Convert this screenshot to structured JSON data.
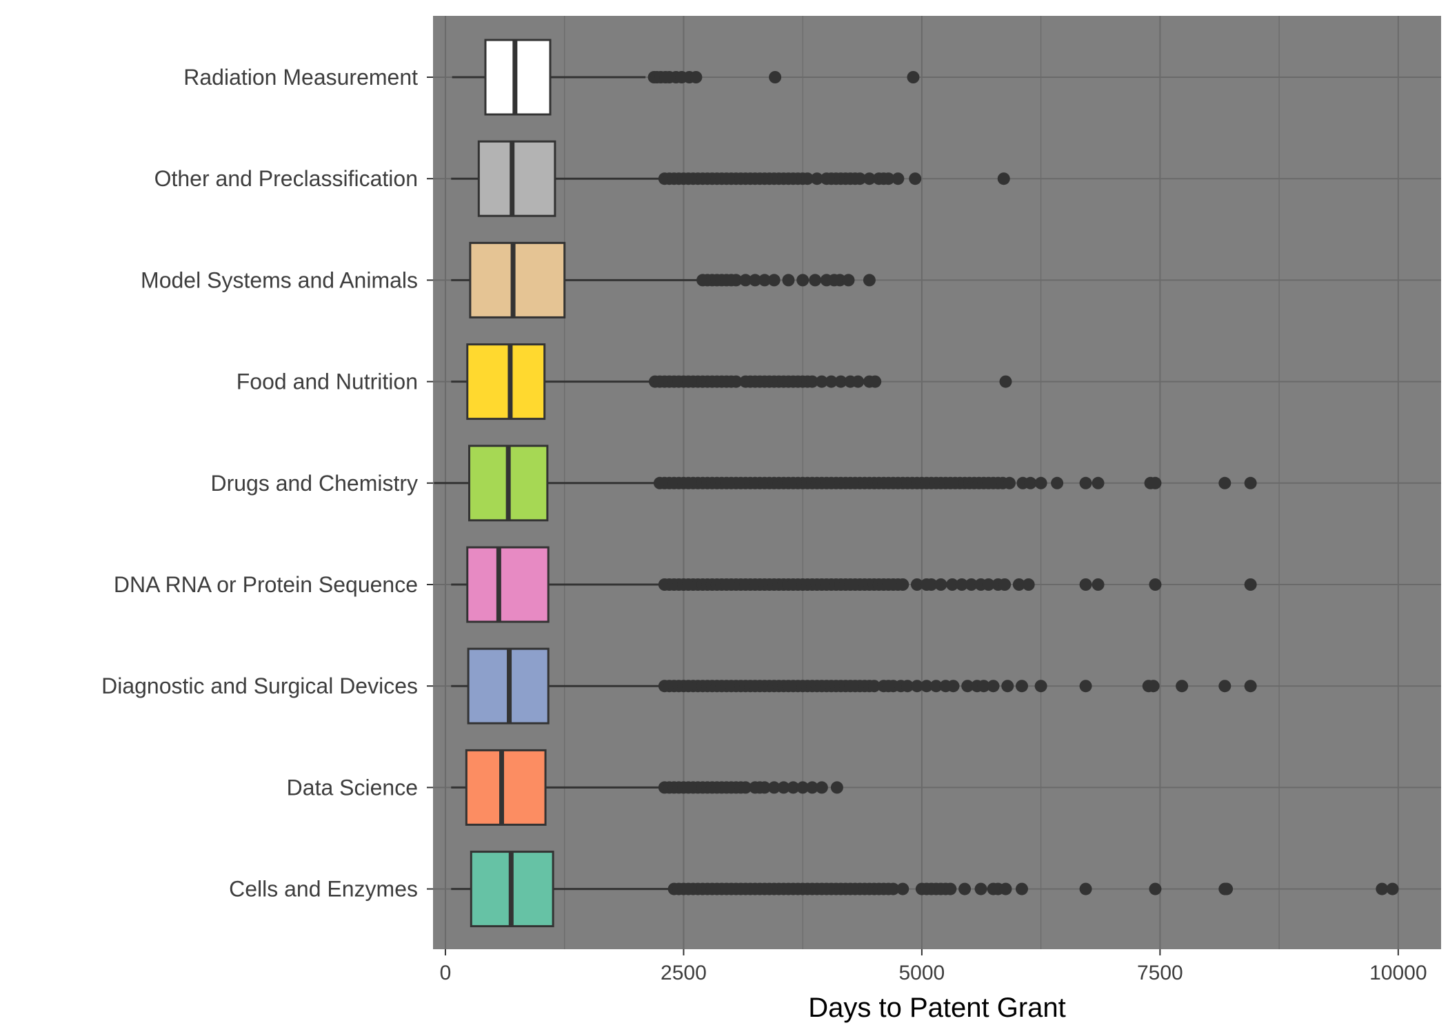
{
  "chart_data": {
    "type": "boxplot",
    "orientation": "horizontal",
    "xlabel": "Days to Patent Grant",
    "ylabel": "",
    "xlim": [
      -130,
      10450
    ],
    "xticks": [
      0,
      2500,
      5000,
      7500,
      10000
    ],
    "xtick_labels": [
      "0",
      "2500",
      "5000",
      "7500",
      "10000"
    ],
    "grid": true,
    "legend": "none",
    "panel_color": "#7f7f7f",
    "grid_color": "#6a6a6a",
    "box_edge_color": "#333333",
    "outlier_color": "#333333",
    "categories": [
      "Cells and Enzymes",
      "Data Science",
      "Diagnostic and Surgical Devices",
      "DNA RNA or Protein Sequence",
      "Drugs and Chemistry",
      "Food and Nutrition",
      "Model Systems and Animals",
      "Other and Preclassification",
      "Radiation Measurement"
    ],
    "series": [
      {
        "category": "Cells and Enzymes",
        "color": "#66c2a5",
        "whisker_low": 60,
        "q1": 270,
        "median": 690,
        "q3": 1130,
        "whisker_high": 2400,
        "outliers": [
          2400,
          2450,
          2500,
          2550,
          2600,
          2650,
          2700,
          2750,
          2800,
          2850,
          2900,
          2950,
          3000,
          3050,
          3100,
          3150,
          3200,
          3250,
          3300,
          3350,
          3400,
          3450,
          3500,
          3550,
          3600,
          3650,
          3700,
          3750,
          3800,
          3850,
          3900,
          3950,
          4000,
          4050,
          4100,
          4150,
          4200,
          4250,
          4300,
          4350,
          4400,
          4450,
          4500,
          4550,
          4600,
          4650,
          4700,
          4800,
          5000,
          5050,
          5100,
          5150,
          5200,
          5250,
          5300,
          5450,
          5620,
          5750,
          5800,
          5880,
          6050,
          6720,
          7450,
          8180,
          8200,
          9830,
          9940
        ]
      },
      {
        "category": "Data Science",
        "color": "#fc8d62",
        "whisker_low": 60,
        "q1": 220,
        "median": 590,
        "q3": 1050,
        "whisker_high": 2300,
        "outliers": [
          2300,
          2350,
          2400,
          2450,
          2500,
          2550,
          2600,
          2650,
          2700,
          2750,
          2800,
          2850,
          2900,
          2950,
          3000,
          3050,
          3100,
          3150,
          3250,
          3300,
          3350,
          3450,
          3550,
          3650,
          3750,
          3850,
          3950,
          4110
        ]
      },
      {
        "category": "Diagnostic and Surgical Devices",
        "color": "#8da0cb",
        "whisker_low": 60,
        "q1": 240,
        "median": 670,
        "q3": 1080,
        "whisker_high": 2300,
        "outliers": [
          2300,
          2350,
          2400,
          2450,
          2500,
          2550,
          2600,
          2650,
          2700,
          2750,
          2800,
          2850,
          2900,
          2950,
          3000,
          3050,
          3100,
          3150,
          3200,
          3250,
          3300,
          3350,
          3400,
          3450,
          3500,
          3550,
          3600,
          3650,
          3700,
          3750,
          3800,
          3850,
          3900,
          3950,
          4000,
          4050,
          4100,
          4150,
          4200,
          4250,
          4300,
          4350,
          4400,
          4450,
          4500,
          4600,
          4650,
          4700,
          4780,
          4850,
          4950,
          5050,
          5150,
          5250,
          5330,
          5480,
          5580,
          5650,
          5750,
          5900,
          6050,
          6250,
          6720,
          7380,
          7430,
          7730,
          8180,
          8450
        ]
      },
      {
        "category": "DNA RNA or Protein Sequence",
        "color": "#e78ac3",
        "whisker_low": 60,
        "q1": 230,
        "median": 560,
        "q3": 1080,
        "whisker_high": 2300,
        "outliers": [
          2300,
          2350,
          2400,
          2450,
          2500,
          2550,
          2600,
          2650,
          2700,
          2750,
          2800,
          2850,
          2900,
          2950,
          3000,
          3050,
          3100,
          3150,
          3200,
          3250,
          3300,
          3350,
          3400,
          3450,
          3500,
          3550,
          3600,
          3650,
          3700,
          3750,
          3800,
          3850,
          3900,
          3950,
          4000,
          4050,
          4100,
          4150,
          4200,
          4250,
          4300,
          4350,
          4400,
          4450,
          4500,
          4550,
          4600,
          4650,
          4700,
          4750,
          4800,
          4950,
          5050,
          5100,
          5200,
          5320,
          5420,
          5520,
          5620,
          5700,
          5800,
          5870,
          6020,
          6120,
          6720,
          6850,
          7450,
          8450
        ]
      },
      {
        "category": "Drugs and Chemistry",
        "color": "#a6d854",
        "whisker_low": -120,
        "q1": 250,
        "median": 660,
        "q3": 1070,
        "whisker_high": 2250,
        "outliers": [
          2250,
          2300,
          2350,
          2400,
          2450,
          2500,
          2550,
          2600,
          2650,
          2700,
          2750,
          2800,
          2850,
          2900,
          2950,
          3000,
          3050,
          3100,
          3150,
          3200,
          3250,
          3300,
          3350,
          3400,
          3450,
          3500,
          3550,
          3600,
          3650,
          3700,
          3750,
          3800,
          3850,
          3900,
          3950,
          4000,
          4050,
          4100,
          4150,
          4200,
          4250,
          4300,
          4350,
          4400,
          4450,
          4500,
          4550,
          4600,
          4650,
          4700,
          4750,
          4800,
          4850,
          4900,
          4950,
          5000,
          5050,
          5100,
          5150,
          5200,
          5250,
          5300,
          5350,
          5400,
          5450,
          5500,
          5550,
          5600,
          5650,
          5700,
          5750,
          5800,
          5850,
          5920,
          6060,
          6140,
          6250,
          6420,
          6720,
          6850,
          7400,
          7450,
          8180,
          8450
        ]
      },
      {
        "category": "Food and Nutrition",
        "color": "#ffd92f",
        "whisker_low": 60,
        "q1": 230,
        "median": 680,
        "q3": 1040,
        "whisker_high": 2200,
        "outliers": [
          2200,
          2250,
          2300,
          2350,
          2400,
          2450,
          2500,
          2550,
          2600,
          2650,
          2700,
          2750,
          2800,
          2850,
          2900,
          2950,
          3000,
          3050,
          3150,
          3200,
          3250,
          3300,
          3350,
          3400,
          3450,
          3500,
          3550,
          3600,
          3650,
          3700,
          3750,
          3800,
          3850,
          3950,
          4050,
          4150,
          4250,
          4330,
          4450,
          4510,
          5880
        ]
      },
      {
        "category": "Model Systems and Animals",
        "color": "#e5c494",
        "whisker_low": 60,
        "q1": 260,
        "median": 710,
        "q3": 1250,
        "whisker_high": 2700,
        "outliers": [
          2700,
          2750,
          2800,
          2850,
          2900,
          2950,
          3000,
          3050,
          3150,
          3250,
          3350,
          3450,
          3600,
          3750,
          3880,
          4000,
          4080,
          4140,
          4230,
          4450
        ]
      },
      {
        "category": "Other and Preclassification",
        "color": "#b3b3b3",
        "whisker_low": 60,
        "q1": 350,
        "median": 700,
        "q3": 1150,
        "whisker_high": 2300,
        "outliers": [
          2300,
          2350,
          2400,
          2450,
          2500,
          2550,
          2600,
          2650,
          2700,
          2750,
          2800,
          2850,
          2900,
          2950,
          3000,
          3050,
          3100,
          3150,
          3200,
          3250,
          3300,
          3350,
          3400,
          3450,
          3500,
          3550,
          3600,
          3650,
          3700,
          3750,
          3800,
          3900,
          4000,
          4050,
          4100,
          4150,
          4200,
          4250,
          4300,
          4350,
          4450,
          4550,
          4600,
          4650,
          4750,
          4930,
          5860
        ]
      },
      {
        "category": "Radiation Measurement",
        "color": "#ffffff",
        "whisker_low": 70,
        "q1": 420,
        "median": 730,
        "q3": 1100,
        "whisker_high": 2100,
        "outliers": [
          2190,
          2220,
          2260,
          2310,
          2350,
          2420,
          2480,
          2560,
          2630,
          3460,
          4910
        ]
      }
    ]
  }
}
